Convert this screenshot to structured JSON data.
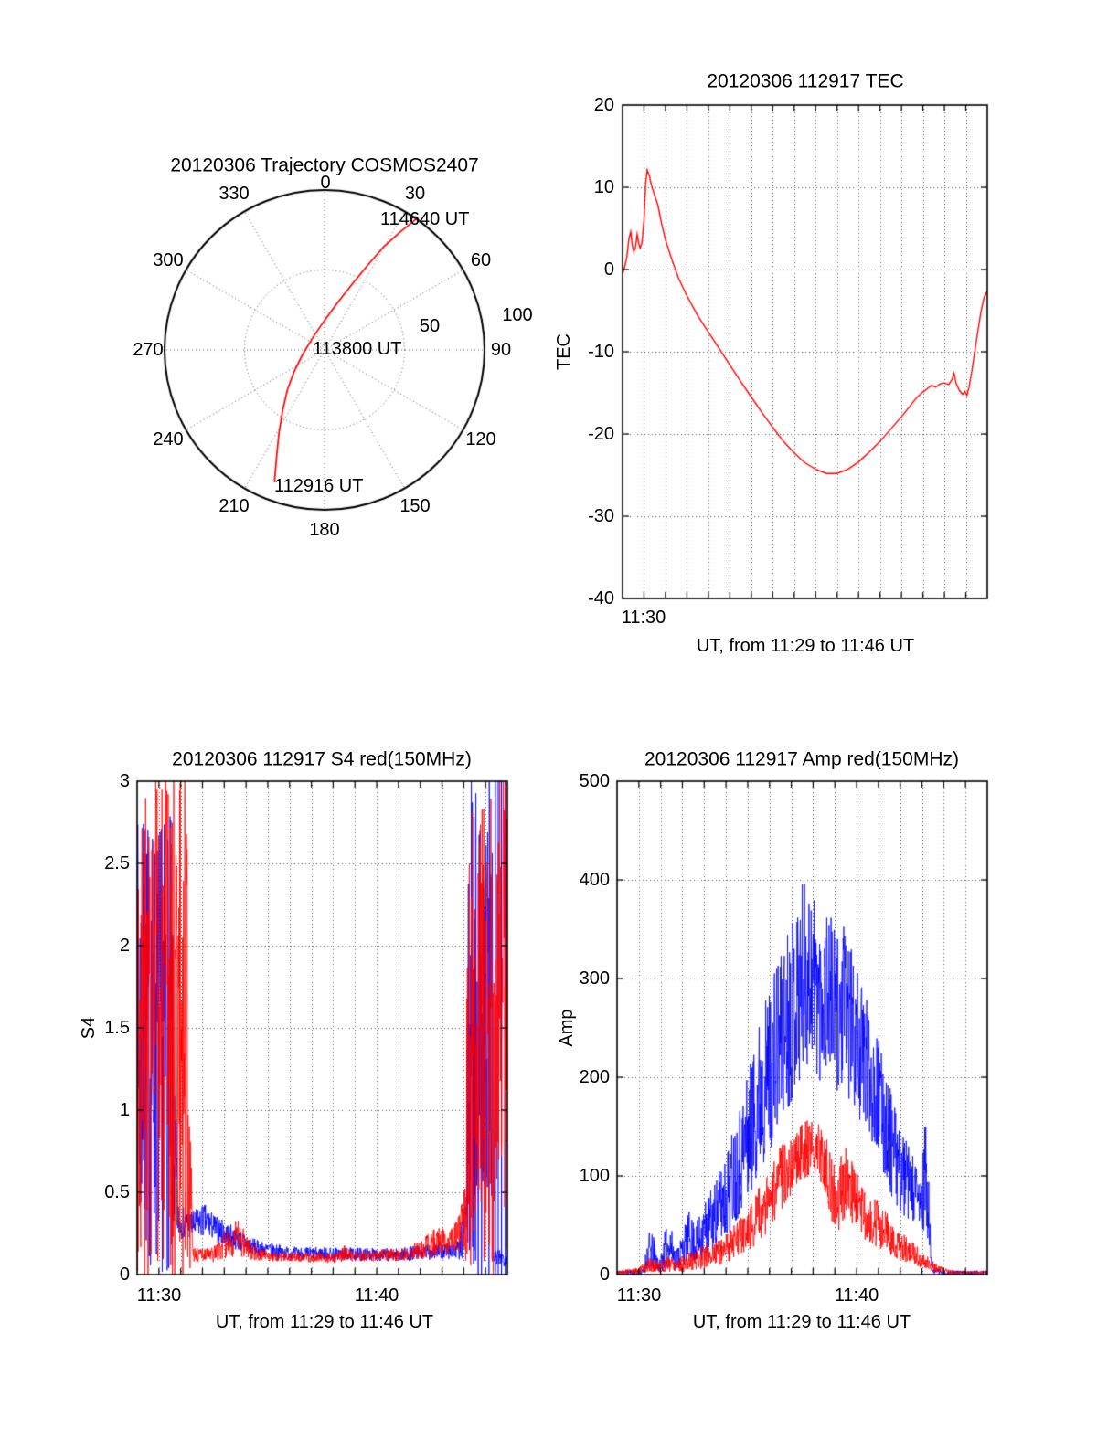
{
  "figure": {
    "background": "#ffffff",
    "colors": {
      "red": "#ff0000",
      "blue": "#0000ff",
      "axis": "#000000",
      "grid": "#555555"
    }
  },
  "chart_data": [
    {
      "type": "line",
      "variant": "polar-trajectory",
      "title": "20120306 Trajectory COSMOS2407",
      "azimuth_tick_labels": [
        "0",
        "30",
        "60",
        "90",
        "120",
        "150",
        "180",
        "210",
        "240",
        "270",
        "300",
        "330"
      ],
      "radial_tick_labels": [
        "50",
        "100"
      ],
      "annotations": [
        "112916 UT",
        "113800 UT",
        "114640 UT"
      ],
      "series": [
        {
          "name": "satellite-track",
          "color": "#ff0000",
          "points_az_r": [
            [
              200.7,
              0.886
            ],
            [
              204.1,
              0.734
            ],
            [
              208.7,
              0.593
            ],
            [
              214.6,
              0.462
            ],
            [
              222.9,
              0.341
            ],
            [
              234.6,
              0.233
            ],
            [
              257.7,
              0.141
            ],
            [
              315.0,
              0.106
            ],
            [
              0.0,
              0.185
            ],
            [
              15.8,
              0.312
            ],
            [
              22.9,
              0.45
            ],
            [
              27.0,
              0.595
            ],
            [
              29.8,
              0.744
            ],
            [
              32.6,
              0.872
            ],
            [
              35.0,
              1.0
            ]
          ]
        }
      ]
    },
    {
      "type": "line",
      "title": "20120306 112917 TEC",
      "ylabel": "TEC",
      "xlabel": "UT, from 11:29 to 11:46 UT",
      "ylim": [
        -40,
        20
      ],
      "xlim_minutes": [
        0,
        17
      ],
      "ytick_labels": [
        "20",
        "10",
        "0",
        "-10",
        "-20",
        "-30",
        "-40"
      ],
      "xtick_labels": [
        "11:30"
      ],
      "xtick_minutes": [
        1
      ],
      "grid": true,
      "series": [
        {
          "name": "TEC",
          "color": "#ff0000",
          "points": [
            [
              0,
              -0.5
            ],
            [
              0.1,
              0.3
            ],
            [
              0.2,
              1.5
            ],
            [
              0.3,
              3.8
            ],
            [
              0.38,
              4.6
            ],
            [
              0.45,
              3.0
            ],
            [
              0.52,
              2.2
            ],
            [
              0.6,
              2.6
            ],
            [
              0.68,
              4.3
            ],
            [
              0.75,
              3.2
            ],
            [
              0.82,
              2.6
            ],
            [
              0.9,
              3.2
            ],
            [
              1.0,
              6.0
            ],
            [
              1.08,
              10.5
            ],
            [
              1.15,
              12.1
            ],
            [
              1.25,
              11.4
            ],
            [
              1.35,
              10.2
            ],
            [
              1.5,
              9.0
            ],
            [
              1.65,
              7.8
            ],
            [
              1.8,
              5.8
            ],
            [
              2.0,
              3.6
            ],
            [
              2.3,
              1.2
            ],
            [
              2.6,
              -1.0
            ],
            [
              3.0,
              -3.2
            ],
            [
              3.5,
              -5.6
            ],
            [
              4.0,
              -7.6
            ],
            [
              4.5,
              -9.6
            ],
            [
              5.0,
              -11.6
            ],
            [
              5.5,
              -13.6
            ],
            [
              6.0,
              -15.5
            ],
            [
              6.5,
              -17.4
            ],
            [
              7.0,
              -19.2
            ],
            [
              7.5,
              -20.9
            ],
            [
              8.0,
              -22.3
            ],
            [
              8.5,
              -23.5
            ],
            [
              9.0,
              -24.3
            ],
            [
              9.5,
              -24.8
            ],
            [
              10.0,
              -24.8
            ],
            [
              10.5,
              -24.3
            ],
            [
              11.0,
              -23.4
            ],
            [
              11.5,
              -22.2
            ],
            [
              12.0,
              -20.9
            ],
            [
              12.5,
              -19.4
            ],
            [
              13.0,
              -17.9
            ],
            [
              13.4,
              -16.6
            ],
            [
              13.7,
              -15.6
            ],
            [
              14.0,
              -14.9
            ],
            [
              14.2,
              -14.5
            ],
            [
              14.4,
              -14.1
            ],
            [
              14.6,
              -14.3
            ],
            [
              14.8,
              -13.9
            ],
            [
              15.0,
              -13.8
            ],
            [
              15.2,
              -14.0
            ],
            [
              15.35,
              -13.4
            ],
            [
              15.45,
              -12.6
            ],
            [
              15.55,
              -13.9
            ],
            [
              15.7,
              -14.7
            ],
            [
              15.85,
              -15.2
            ],
            [
              15.95,
              -14.8
            ],
            [
              16.05,
              -15.3
            ],
            [
              16.15,
              -14.3
            ],
            [
              16.3,
              -12.0
            ],
            [
              16.5,
              -8.5
            ],
            [
              16.7,
              -5.2
            ],
            [
              16.85,
              -3.4
            ],
            [
              17.0,
              -2.6
            ]
          ]
        }
      ]
    },
    {
      "type": "line",
      "title": "20120306 112917 S4 red(150MHz)",
      "ylabel": "S4",
      "xlabel": "UT, from 11:29 to 11:46 UT",
      "ylim": [
        0,
        3
      ],
      "xlim_minutes": [
        0,
        17
      ],
      "ytick_labels": [
        "3",
        "2.5",
        "2",
        "1.5",
        "1",
        "0.5",
        "0"
      ],
      "xtick_labels": [
        "11:30",
        "11:40"
      ],
      "xtick_minutes": [
        1,
        11
      ],
      "grid": true,
      "note": "noisy scintillation index; noise_envelope entries are [t_minutes, mean, half_range]",
      "series": [
        {
          "name": "S4 secondary channel",
          "color": "#0000ff",
          "seed": 7,
          "noise_envelope": [
            [
              0,
              1.4,
              1.4
            ],
            [
              1.55,
              1.4,
              1.4
            ],
            [
              1.75,
              0.6,
              0.5
            ],
            [
              1.9,
              0.32,
              0.1
            ],
            [
              2.6,
              0.3,
              0.09
            ],
            [
              3.1,
              0.33,
              0.1
            ],
            [
              3.6,
              0.28,
              0.08
            ],
            [
              4.5,
              0.22,
              0.07
            ],
            [
              5.5,
              0.16,
              0.05
            ],
            [
              7,
              0.13,
              0.04
            ],
            [
              12,
              0.12,
              0.04
            ],
            [
              13.5,
              0.14,
              0.05
            ],
            [
              14.8,
              0.15,
              0.06
            ],
            [
              15.1,
              0.3,
              0.25
            ],
            [
              15.25,
              1.5,
              1.6
            ],
            [
              16.3,
              1.5,
              1.6
            ],
            [
              16.35,
              0.1,
              0.05
            ],
            [
              17,
              0.1,
              0.05
            ]
          ],
          "full_spikes_t": [
            16.45,
            16.58,
            16.73,
            16.9
          ]
        },
        {
          "name": "S4 red 150MHz",
          "color": "#ff0000",
          "seed": 3,
          "noise_envelope": [
            [
              0,
              1.5,
              1.6
            ],
            [
              2.35,
              1.5,
              1.6
            ],
            [
              2.5,
              0.3,
              0.2
            ],
            [
              2.6,
              0.12,
              0.04
            ],
            [
              3.5,
              0.12,
              0.05
            ],
            [
              4.2,
              0.2,
              0.1
            ],
            [
              4.7,
              0.22,
              0.12
            ],
            [
              5.2,
              0.15,
              0.06
            ],
            [
              6,
              0.11,
              0.03
            ],
            [
              9,
              0.1,
              0.03
            ],
            [
              9.5,
              0.13,
              0.05
            ],
            [
              10,
              0.11,
              0.03
            ],
            [
              12,
              0.12,
              0.04
            ],
            [
              13,
              0.15,
              0.06
            ],
            [
              13.8,
              0.2,
              0.1
            ],
            [
              14.3,
              0.18,
              0.08
            ],
            [
              14.8,
              0.25,
              0.12
            ],
            [
              15.05,
              0.35,
              0.2
            ],
            [
              15.2,
              1.5,
              1.6
            ],
            [
              17,
              1.5,
              1.6
            ]
          ],
          "full_spikes_t": []
        }
      ]
    },
    {
      "type": "line",
      "title": "20120306 112917 Amp red(150MHz)",
      "ylabel": "Amp",
      "xlabel": "UT, from 11:29 to 11:46 UT",
      "ylim": [
        0,
        500
      ],
      "xlim_minutes": [
        0,
        17
      ],
      "ytick_labels": [
        "500",
        "400",
        "300",
        "200",
        "100",
        "0"
      ],
      "xtick_labels": [
        "11:30",
        "11:40"
      ],
      "xtick_minutes": [
        1,
        11
      ],
      "grid": true,
      "note": "noisy amplitude; noise_envelope entries are [t_minutes, mean, half_range]",
      "series": [
        {
          "name": "Amp secondary channel",
          "color": "#0000ff",
          "seed": 11,
          "noise_envelope": [
            [
              0,
              2,
              2
            ],
            [
              1.2,
              3,
              3
            ],
            [
              1.45,
              25,
              20
            ],
            [
              1.7,
              20,
              18
            ],
            [
              1.95,
              8,
              6
            ],
            [
              2.2,
              25,
              20
            ],
            [
              2.45,
              30,
              22
            ],
            [
              2.7,
              15,
              12
            ],
            [
              3.0,
              25,
              18
            ],
            [
              3.3,
              40,
              25
            ],
            [
              3.6,
              30,
              20
            ],
            [
              4.0,
              45,
              30
            ],
            [
              4.5,
              60,
              35
            ],
            [
              5.0,
              80,
              45
            ],
            [
              5.5,
              110,
              55
            ],
            [
              6.0,
              140,
              65
            ],
            [
              6.5,
              180,
              80
            ],
            [
              7.0,
              210,
              85
            ],
            [
              7.5,
              240,
              90
            ],
            [
              8.0,
              270,
              95
            ],
            [
              8.5,
              300,
              100
            ],
            [
              8.9,
              310,
              95
            ],
            [
              9.3,
              280,
              85
            ],
            [
              9.7,
              290,
              80
            ],
            [
              10.1,
              260,
              85
            ],
            [
              10.5,
              270,
              85
            ],
            [
              10.9,
              240,
              75
            ],
            [
              11.3,
              220,
              70
            ],
            [
              11.7,
              200,
              65
            ],
            [
              12.1,
              170,
              60
            ],
            [
              12.5,
              140,
              55
            ],
            [
              12.9,
              110,
              45
            ],
            [
              13.3,
              95,
              40
            ],
            [
              13.7,
              80,
              35
            ],
            [
              14.0,
              70,
              30
            ],
            [
              14.15,
              100,
              80
            ],
            [
              14.3,
              60,
              40
            ],
            [
              14.45,
              5,
              4
            ],
            [
              15,
              2,
              2
            ],
            [
              17,
              2,
              2
            ]
          ],
          "full_spikes_t": []
        },
        {
          "name": "Amp red 150MHz",
          "color": "#ff0000",
          "seed": 5,
          "noise_envelope": [
            [
              0,
              2,
              2
            ],
            [
              1.0,
              4,
              3
            ],
            [
              1.5,
              10,
              8
            ],
            [
              2.0,
              8,
              6
            ],
            [
              2.5,
              12,
              9
            ],
            [
              3.0,
              10,
              8
            ],
            [
              3.5,
              15,
              10
            ],
            [
              4.0,
              18,
              12
            ],
            [
              4.5,
              22,
              14
            ],
            [
              5.0,
              28,
              16
            ],
            [
              5.5,
              35,
              18
            ],
            [
              6.0,
              45,
              22
            ],
            [
              6.5,
              60,
              28
            ],
            [
              7.0,
              75,
              30
            ],
            [
              7.5,
              95,
              35
            ],
            [
              8.0,
              115,
              35
            ],
            [
              8.5,
              125,
              30
            ],
            [
              9.0,
              130,
              28
            ],
            [
              9.5,
              120,
              30
            ],
            [
              9.8,
              90,
              35
            ],
            [
              10.1,
              70,
              30
            ],
            [
              10.4,
              95,
              40
            ],
            [
              10.7,
              85,
              35
            ],
            [
              11.0,
              75,
              30
            ],
            [
              11.5,
              60,
              28
            ],
            [
              12.0,
              50,
              24
            ],
            [
              12.5,
              40,
              20
            ],
            [
              13.0,
              30,
              15
            ],
            [
              13.5,
              22,
              12
            ],
            [
              14.0,
              15,
              9
            ],
            [
              14.5,
              8,
              6
            ],
            [
              15.0,
              4,
              3
            ],
            [
              15.5,
              2,
              2
            ],
            [
              17,
              2,
              2
            ]
          ],
          "full_spikes_t": []
        }
      ]
    }
  ]
}
